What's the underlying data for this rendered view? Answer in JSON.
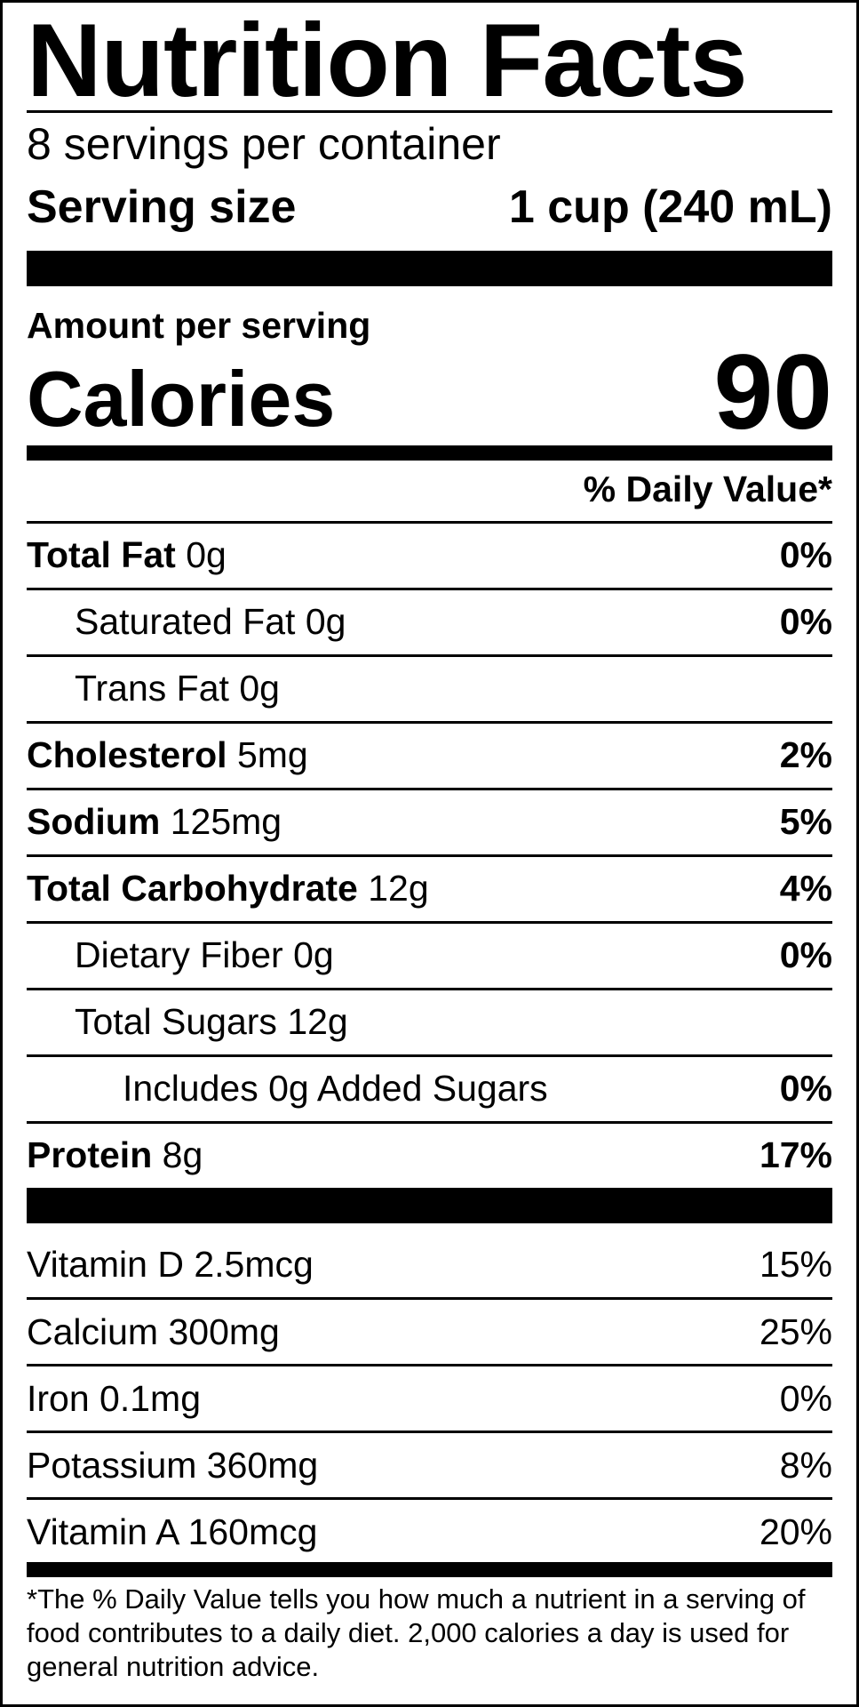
{
  "title": "Nutrition Facts",
  "servings_per_container": "8 servings per container",
  "serving_size": {
    "label": "Serving size",
    "value": "1 cup (240 mL)"
  },
  "amount_per_serving": "Amount per serving",
  "calories": {
    "label": "Calories",
    "value": "90"
  },
  "daily_value_header": "% Daily Value*",
  "nutrients": [
    {
      "name": "Total Fat",
      "amount": "0g",
      "dv": "0%"
    },
    {
      "name": "Saturated Fat",
      "amount": "0g",
      "dv": "0%"
    },
    {
      "name": "Trans Fat",
      "amount": "0g",
      "dv": ""
    },
    {
      "name": "Cholesterol",
      "amount": "5mg",
      "dv": "2%"
    },
    {
      "name": "Sodium",
      "amount": "125mg",
      "dv": "5%"
    },
    {
      "name": "Total Carbohydrate",
      "amount": "12g",
      "dv": "4%"
    },
    {
      "name": "Dietary Fiber",
      "amount": "0g",
      "dv": "0%"
    },
    {
      "name": "Total Sugars",
      "amount": "12g",
      "dv": ""
    },
    {
      "name": "Includes 0g Added Sugars",
      "amount": "",
      "dv": "0%"
    },
    {
      "name": "Protein",
      "amount": "8g",
      "dv": "17%"
    }
  ],
  "vitamins": [
    {
      "name": "Vitamin D 2.5mcg",
      "dv": "15%"
    },
    {
      "name": "Calcium 300mg",
      "dv": "25%"
    },
    {
      "name": "Iron 0.1mg",
      "dv": "0%"
    },
    {
      "name": "Potassium 360mg",
      "dv": "8%"
    },
    {
      "name": "Vitamin A 160mcg",
      "dv": "20%"
    }
  ],
  "footnote": "*The % Daily Value tells you how much a nutrient in a serving of food contributes to a daily diet. 2,000 calories a day is used for general nutrition advice."
}
